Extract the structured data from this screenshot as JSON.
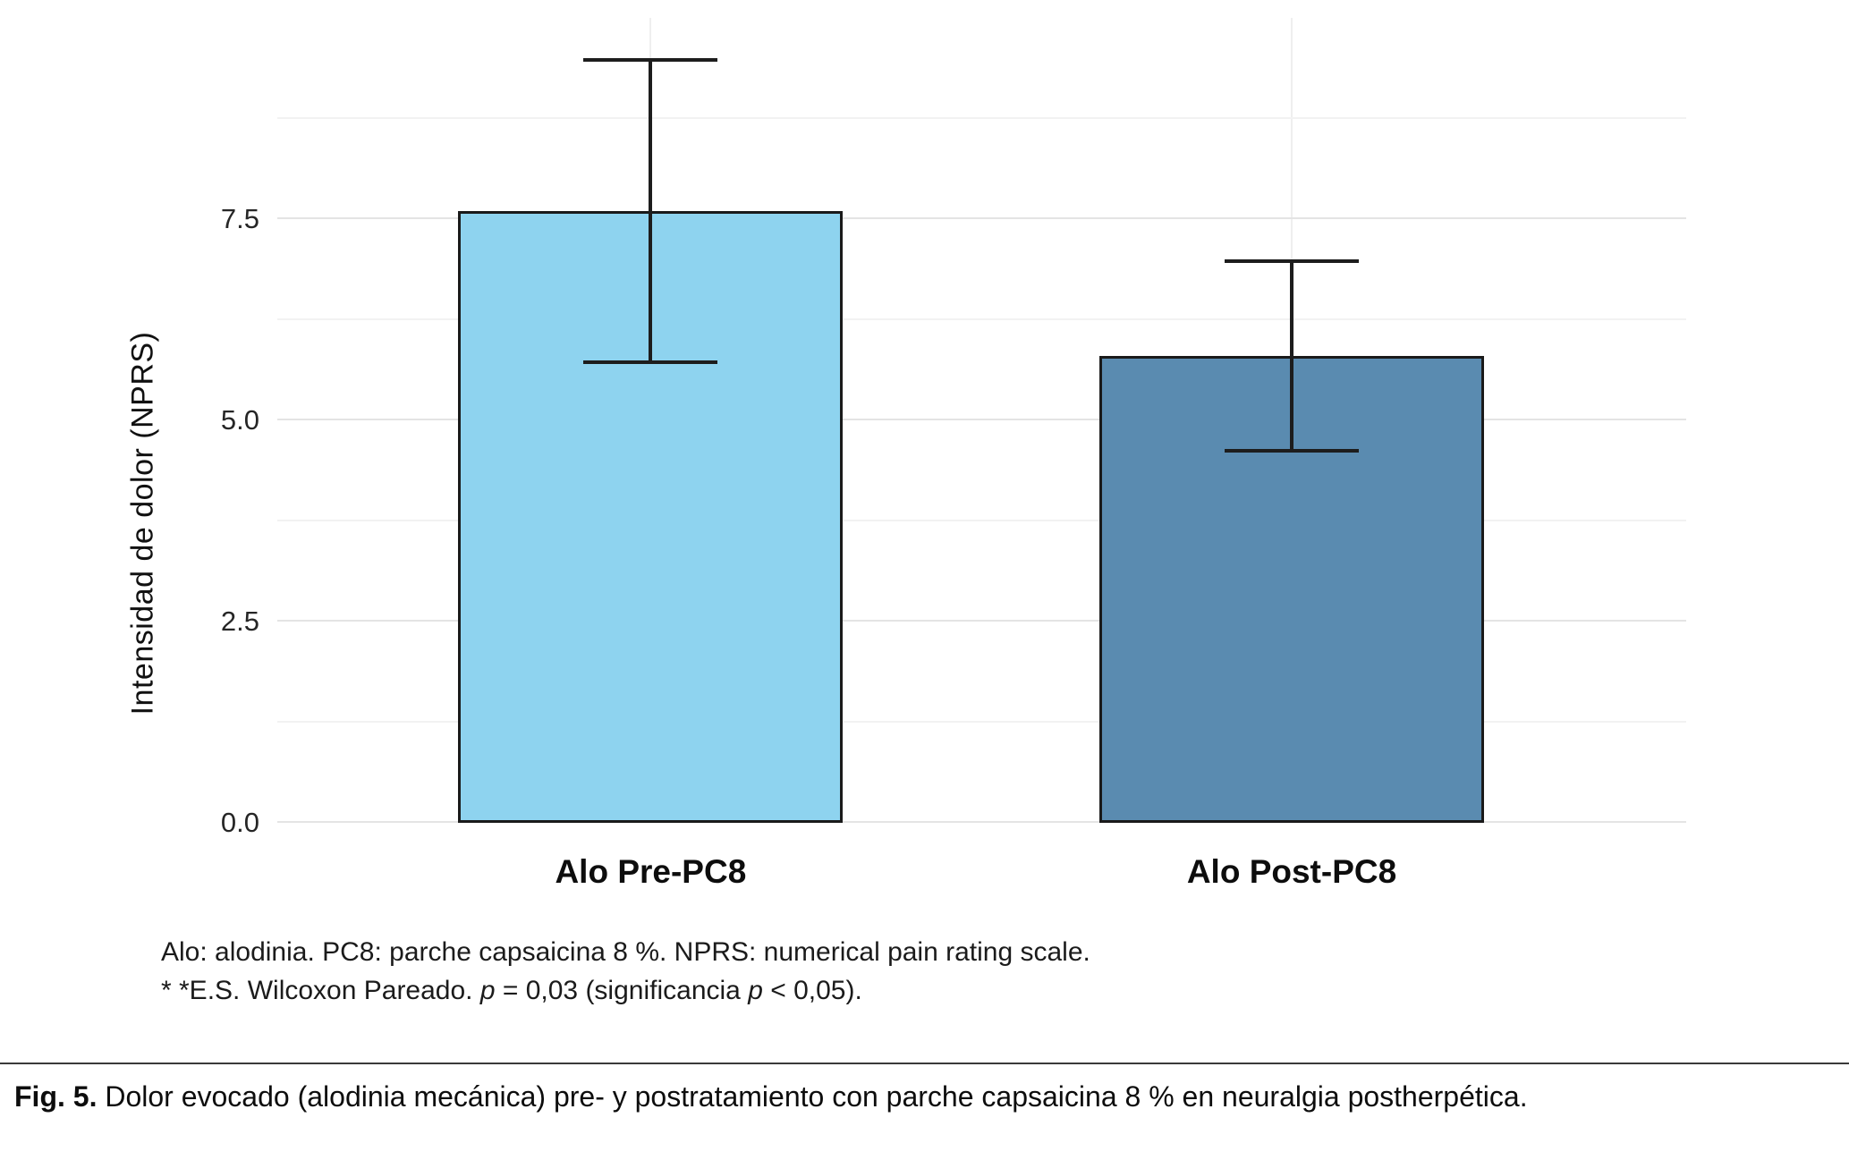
{
  "figure": {
    "notes": {
      "line1": "Alo: alodinia. PC8: parche capsaicina 8 %. NPRS: numerical pain rating scale.",
      "line2": {
        "prefix": "* *E.S. Wilcoxon Pareado. ",
        "p1": "p",
        "mid": " = 0,03 (significancia ",
        "p2": "p",
        "suffix": " < 0,05)."
      }
    },
    "caption": {
      "label": "Fig. 5.",
      "text": "Dolor evocado (alodinia mecánica)  pre- y postratamiento con parche capsaicina 8 % en neuralgia postherpética."
    }
  },
  "chart_data": {
    "type": "bar",
    "title": "",
    "xlabel": "",
    "ylabel": "Intensidad de dolor (NPRS)",
    "categories": [
      "Alo Pre-PC8",
      "Alo Post-PC8"
    ],
    "values": [
      7.6,
      5.8
    ],
    "error_low": [
      5.7,
      4.6
    ],
    "error_high": [
      9.5,
      7.0
    ],
    "yticks": [
      0,
      2.5,
      5,
      7.5
    ],
    "ytick_labels": [
      "0.0",
      "2.5",
      "5.0",
      "7.5"
    ],
    "yticks_minor": [
      1.25,
      3.75,
      6.25,
      8.75
    ],
    "ylim": [
      0,
      10
    ],
    "grid": true,
    "legend": false,
    "bar_colors": [
      "#8ED3EF",
      "#5A8BB0"
    ],
    "bar_edge_color": "#1a1a1a",
    "error_color": "#1d1d1d"
  }
}
